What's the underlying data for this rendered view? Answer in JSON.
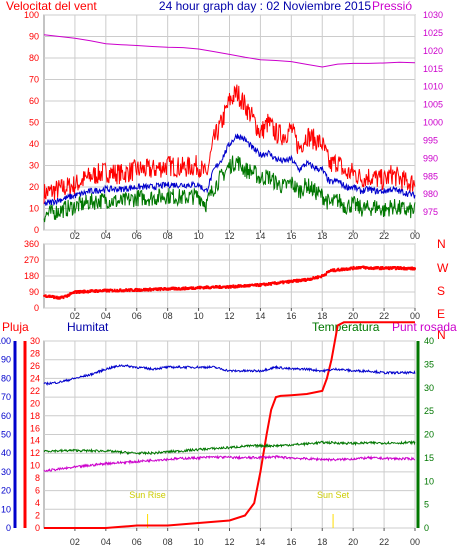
{
  "header": {
    "title": "24 hour graph day : 02 Noviembre 2015",
    "left_label": "Velocitat del vent",
    "right_label": "Pressió"
  },
  "colors": {
    "red": "#ff0000",
    "blue": "#0000cc",
    "green": "#007700",
    "magenta": "#cc00cc",
    "grid": "#cccccc",
    "yellow": "#ffdd00"
  },
  "chart_data": [
    {
      "type": "line",
      "name": "wind-pressure",
      "x_ticks": [
        "02",
        "04",
        "06",
        "08",
        "10",
        "12",
        "14",
        "16",
        "18",
        "20",
        "22",
        "00"
      ],
      "xlim": [
        0,
        24
      ],
      "left_axis": {
        "label": "Velocitat del vent",
        "ylim": [
          0,
          100
        ],
        "ticks": [
          0,
          10,
          20,
          30,
          40,
          50,
          60,
          70,
          80,
          90,
          100
        ]
      },
      "right_axis": {
        "label": "Pressió",
        "ylim": [
          970,
          1030
        ],
        "ticks": [
          975,
          980,
          985,
          990,
          995,
          1000,
          1005,
          1010,
          1015,
          1020,
          1025,
          1030
        ]
      },
      "series": [
        {
          "color": "#ff0000",
          "axis": "left",
          "x": [
            0,
            1,
            2,
            3,
            4,
            5,
            6,
            7,
            8,
            9,
            10,
            10.5,
            11,
            11.5,
            12,
            12.5,
            13,
            13.5,
            14,
            14.5,
            15,
            15.5,
            16,
            16.5,
            17,
            17.5,
            18,
            18.5,
            19,
            19.5,
            20,
            20.5,
            21,
            21.5,
            22,
            22.5,
            23,
            23.5,
            24
          ],
          "y": [
            17,
            19,
            21,
            25,
            27,
            26,
            28,
            28,
            30,
            29,
            30,
            25,
            42,
            50,
            60,
            64,
            58,
            52,
            45,
            50,
            45,
            44,
            47,
            38,
            44,
            42,
            40,
            30,
            32,
            26,
            27,
            24,
            25,
            24,
            23,
            26,
            24,
            22,
            22
          ]
        },
        {
          "color": "#0000cc",
          "axis": "left",
          "x": [
            0,
            1,
            2,
            3,
            4,
            5,
            6,
            7,
            8,
            9,
            10,
            10.5,
            11,
            11.5,
            12,
            12.5,
            13,
            13.5,
            14,
            14.5,
            15,
            15.5,
            16,
            16.5,
            17,
            17.5,
            18,
            18.5,
            19,
            19.5,
            20,
            20.5,
            21,
            21.5,
            22,
            22.5,
            23,
            23.5,
            24
          ],
          "y": [
            12,
            14,
            16,
            18,
            19,
            19,
            20,
            20,
            21,
            21,
            21,
            18,
            28,
            33,
            40,
            44,
            42,
            38,
            35,
            36,
            33,
            32,
            33,
            28,
            31,
            29,
            28,
            22,
            23,
            20,
            20,
            18,
            19,
            18,
            18,
            19,
            18,
            17,
            16
          ]
        },
        {
          "color": "#007700",
          "axis": "left",
          "x": [
            0,
            1,
            2,
            3,
            4,
            5,
            6,
            7,
            8,
            9,
            10,
            10.5,
            11,
            11.5,
            12,
            12.5,
            13,
            13.5,
            14,
            14.5,
            15,
            15.5,
            16,
            16.5,
            17,
            17.5,
            18,
            18.5,
            19,
            19.5,
            20,
            20.5,
            21,
            21.5,
            22,
            22.5,
            23,
            23.5,
            24
          ],
          "y": [
            7,
            9,
            11,
            13,
            14,
            13,
            15,
            15,
            16,
            15,
            16,
            12,
            20,
            25,
            30,
            32,
            28,
            27,
            24,
            25,
            22,
            20,
            22,
            18,
            21,
            18,
            16,
            12,
            14,
            11,
            12,
            10,
            10,
            11,
            9,
            11,
            10,
            9,
            9
          ]
        },
        {
          "color": "#cc00cc",
          "axis": "right",
          "x": [
            0,
            1,
            2,
            3,
            4,
            5,
            6,
            7,
            8,
            9,
            10,
            11,
            12,
            13,
            14,
            15,
            16,
            17,
            18,
            19,
            20,
            21,
            22,
            23,
            24
          ],
          "y": [
            1024.5,
            1024,
            1023.5,
            1022.8,
            1022,
            1021.7,
            1021.5,
            1021.2,
            1021,
            1020.9,
            1020.5,
            1019.8,
            1019,
            1018.2,
            1017.5,
            1017.3,
            1017,
            1016.2,
            1015.5,
            1016.3,
            1016.5,
            1016.5,
            1016.6,
            1016.8,
            1016.7
          ]
        }
      ]
    },
    {
      "type": "scatter",
      "name": "wind-direction",
      "x_ticks": [
        "02",
        "04",
        "06",
        "08",
        "10",
        "12",
        "14",
        "16",
        "18",
        "20",
        "22",
        "00"
      ],
      "xlim": [
        0,
        24
      ],
      "ylim": [
        0,
        360
      ],
      "y_ticks": [
        0,
        90,
        180,
        270,
        360
      ],
      "right_labels": [
        "N",
        "W",
        "S",
        "E",
        "N"
      ],
      "series": [
        {
          "color": "#ff0000",
          "x": [
            0,
            0.5,
            1,
            1.5,
            2,
            3,
            4,
            5,
            6,
            7,
            8,
            9,
            10,
            11,
            12,
            13,
            14,
            15,
            16,
            17,
            18,
            18.5,
            19,
            19.5,
            20,
            20.5,
            21,
            22,
            23,
            24
          ],
          "y": [
            70,
            65,
            55,
            70,
            90,
            95,
            98,
            100,
            102,
            105,
            108,
            110,
            115,
            118,
            120,
            125,
            130,
            140,
            150,
            160,
            180,
            210,
            215,
            220,
            225,
            230,
            225,
            225,
            225,
            222
          ]
        }
      ]
    },
    {
      "type": "line",
      "name": "rain-humidity-temperature",
      "x_ticks": [
        "02",
        "04",
        "06",
        "08",
        "10",
        "12",
        "14",
        "16",
        "18",
        "20",
        "22",
        "00"
      ],
      "xlim": [
        0,
        24
      ],
      "axes": {
        "pluja": {
          "label": "Pluja",
          "ylim": [
            0,
            30
          ],
          "ticks": [
            0,
            2,
            4,
            6,
            8,
            10,
            12,
            14,
            16,
            18,
            20,
            22,
            24,
            26,
            28,
            30
          ]
        },
        "humitat": {
          "label": "Humitat",
          "ylim": [
            0,
            100
          ],
          "ticks": [
            0,
            10,
            20,
            30,
            40,
            50,
            60,
            70,
            80,
            90,
            100
          ]
        },
        "temperatura": {
          "label": "Temperatura",
          "ylim": [
            0,
            40
          ],
          "ticks": [
            0,
            5,
            10,
            15,
            20,
            25,
            30,
            35,
            40
          ]
        },
        "punt_rosada": {
          "label": "Punt rosada"
        }
      },
      "annotations": [
        {
          "text": "Sun Rise",
          "x": 6.7
        },
        {
          "text": "Sun Set",
          "x": 18.7
        }
      ],
      "series": [
        {
          "color": "#ff0000",
          "axis": "pluja",
          "x": [
            0,
            4,
            5,
            6,
            7,
            8,
            9,
            10,
            11,
            12,
            13,
            13.6,
            14,
            14.4,
            14.7,
            15,
            15.3,
            16,
            17,
            18,
            18.3,
            18.6,
            19,
            19.4,
            20,
            21,
            22,
            23,
            24
          ],
          "y": [
            0,
            0,
            0.2,
            0.4,
            0.4,
            0.4,
            0.6,
            0.8,
            1.0,
            1.2,
            2,
            4,
            9,
            15,
            19,
            21,
            21.2,
            21.3,
            21.5,
            22,
            24,
            27,
            32.5,
            33,
            33,
            33,
            33,
            33,
            33
          ]
        },
        {
          "color": "#0000cc",
          "axis": "humitat",
          "x": [
            0,
            1,
            2,
            3,
            4,
            5,
            6,
            7,
            8,
            9,
            10,
            11,
            12,
            13,
            14,
            15,
            16,
            17,
            18,
            19,
            20,
            21,
            22,
            23,
            24
          ],
          "y": [
            77,
            78,
            80,
            82,
            85,
            87,
            86,
            85,
            86,
            86,
            86,
            86,
            84,
            84,
            84,
            86,
            85,
            85,
            84,
            85,
            84,
            84,
            83,
            83,
            83
          ]
        },
        {
          "color": "#007700",
          "axis": "temperatura",
          "x": [
            0,
            1,
            2,
            3,
            4,
            5,
            6,
            7,
            8,
            9,
            10,
            11,
            12,
            13,
            14,
            15,
            16,
            17,
            18,
            19,
            20,
            21,
            22,
            23,
            24
          ],
          "y": [
            16.5,
            16.5,
            16.6,
            16.5,
            16.5,
            16.2,
            16,
            16,
            16.3,
            16.5,
            16.8,
            17,
            17.2,
            17.5,
            17.6,
            17.6,
            17.8,
            18,
            18.3,
            18.2,
            18.1,
            18.2,
            18.2,
            18.2,
            18.3
          ]
        },
        {
          "color": "#cc00cc",
          "axis": "temperatura",
          "x": [
            0,
            1,
            2,
            3,
            4,
            5,
            6,
            7,
            8,
            9,
            10,
            11,
            12,
            13,
            14,
            15,
            16,
            17,
            18,
            19,
            20,
            21,
            22,
            23,
            24
          ],
          "y": [
            12.2,
            12.6,
            13,
            13.4,
            13.8,
            14,
            14.2,
            14.5,
            14.7,
            14.9,
            15,
            15.2,
            15.1,
            15,
            15.1,
            15.2,
            15,
            14.8,
            14.7,
            14.6,
            14.8,
            15,
            14.9,
            14.8,
            14.8
          ]
        }
      ]
    }
  ]
}
